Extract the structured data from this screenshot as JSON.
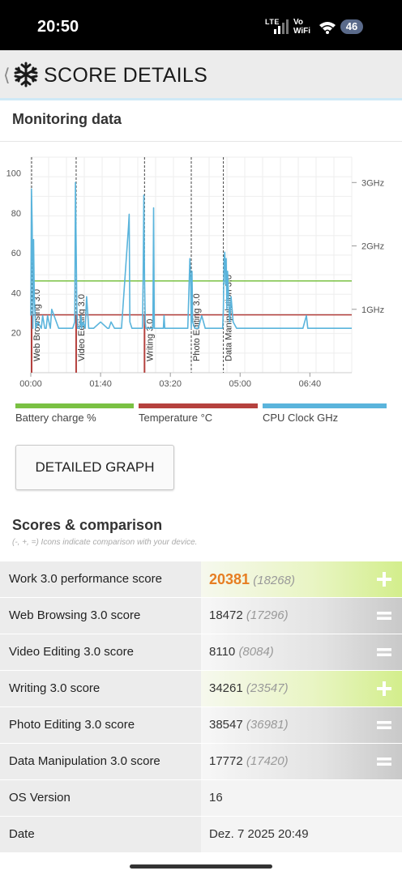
{
  "status_bar": {
    "time": "20:50",
    "network": "LTE",
    "vowifi": [
      "Vo",
      "WiFi"
    ],
    "battery": "46"
  },
  "app_bar": {
    "title": "SCORE DETAILS",
    "back_icon": "chevron-left-icon",
    "logo_icon": "snowflake-icon"
  },
  "monitoring": {
    "title": "Monitoring data"
  },
  "chart_data": {
    "type": "line",
    "title": "",
    "x_unit": "time (mm:ss)",
    "x_ticks": [
      "00:00",
      "01:40",
      "03:20",
      "05:00",
      "06:40"
    ],
    "x_range_seconds": [
      0,
      460
    ],
    "y_left": {
      "ticks": [
        20,
        40,
        60,
        80,
        100
      ],
      "range": [
        0,
        108
      ]
    },
    "y_right": {
      "ticks": [
        "1GHz",
        "2GHz",
        "3GHz"
      ],
      "range_ghz": [
        0,
        3.4
      ]
    },
    "grid": true,
    "colors": {
      "battery": "#7ac143",
      "temperature": "#b5413e",
      "cpu": "#5ab4dc"
    },
    "segments": [
      {
        "label": "Web Browsing 3.0",
        "start_s": 0
      },
      {
        "label": "Video Editing 3.0",
        "start_s": 65
      },
      {
        "label": "Writing 3.0",
        "start_s": 163
      },
      {
        "label": "Photo Editing 3.0",
        "start_s": 230
      },
      {
        "label": "Data Manipulation 3.0",
        "start_s": 276
      }
    ],
    "series": [
      {
        "name": "Battery charge %",
        "axis": "left",
        "x": [
          0,
          460
        ],
        "y": [
          46,
          46
        ]
      },
      {
        "name": "Temperature °C",
        "axis": "left",
        "x": [
          0,
          460
        ],
        "y": [
          29,
          29
        ]
      },
      {
        "name": "CPU Clock GHz",
        "axis": "right",
        "x": [
          0,
          1,
          2,
          3,
          4,
          5,
          7,
          10,
          15,
          17,
          20,
          22,
          24,
          26,
          28,
          30,
          40,
          60,
          63,
          64,
          65,
          66,
          67,
          70,
          72,
          73,
          75,
          78,
          80,
          83,
          85,
          90,
          100,
          110,
          112,
          115,
          120,
          130,
          140,
          141,
          142,
          145,
          150,
          160,
          161,
          162,
          163,
          164,
          165,
          166,
          170,
          175,
          176,
          177,
          180,
          190,
          191,
          192,
          195,
          210,
          220,
          225,
          228,
          229,
          230,
          231,
          232,
          235,
          240,
          245,
          250,
          260,
          275,
          276,
          277,
          278,
          279,
          280,
          281,
          282,
          285,
          287,
          290,
          295,
          300,
          320,
          350,
          390,
          395,
          397,
          400,
          420,
          440,
          460
        ],
        "y": [
          0.9,
          2.9,
          2.3,
          0.7,
          2.1,
          1.2,
          0.7,
          0.8,
          0.7,
          0.9,
          0.7,
          0.7,
          0.9,
          0.8,
          0.7,
          1.0,
          0.7,
          0.7,
          0.8,
          3.0,
          2.0,
          1.0,
          0.7,
          0.7,
          0.9,
          0.7,
          0.8,
          0.7,
          1.2,
          0.7,
          0.7,
          0.7,
          0.8,
          0.7,
          0.7,
          0.8,
          0.7,
          0.7,
          2.3,
          2.5,
          0.8,
          0.7,
          0.7,
          0.7,
          1.5,
          2.8,
          1.5,
          0.8,
          0.7,
          0.7,
          0.7,
          0.7,
          2.6,
          0.7,
          0.7,
          0.7,
          0.9,
          0.7,
          0.7,
          0.7,
          0.7,
          0.7,
          1.8,
          1.5,
          0.7,
          1.6,
          0.8,
          0.7,
          0.7,
          0.9,
          0.7,
          0.7,
          0.7,
          1.0,
          1.8,
          1.9,
          1.4,
          1.8,
          1.0,
          1.6,
          0.8,
          1.2,
          0.8,
          0.7,
          0.7,
          0.7,
          0.7,
          0.7,
          0.9,
          0.7,
          0.7,
          0.7,
          0.7,
          0.7
        ]
      }
    ]
  },
  "legend": [
    "Battery charge %",
    "Temperature °C",
    "CPU Clock GHz"
  ],
  "detailed_graph_button": "DETAILED GRAPH",
  "scores": {
    "title": "Scores & comparison",
    "subtitle": "(-, +, =) Icons indicate comparison with your device.",
    "rows": [
      {
        "label": "Work 3.0 performance score",
        "value": "20381",
        "ref": "(18268)",
        "cmp": "plus",
        "cmp_icon": "plus-icon"
      },
      {
        "label": "Web Browsing 3.0 score",
        "value": "18472",
        "ref": "(17296)",
        "cmp": "equal",
        "cmp_icon": "equal-icon"
      },
      {
        "label": "Video Editing 3.0 score",
        "value": "8110",
        "ref": "(8084)",
        "cmp": "equal",
        "cmp_icon": "equal-icon"
      },
      {
        "label": "Writing 3.0 score",
        "value": "34261",
        "ref": "(23547)",
        "cmp": "plus",
        "cmp_icon": "plus-icon"
      },
      {
        "label": "Photo Editing 3.0 score",
        "value": "38547",
        "ref": "(36981)",
        "cmp": "equal",
        "cmp_icon": "equal-icon"
      },
      {
        "label": "Data Manipulation 3.0 score",
        "value": "17772",
        "ref": "(17420)",
        "cmp": "equal",
        "cmp_icon": "equal-icon"
      },
      {
        "label": "OS Version",
        "value": "16",
        "ref": "",
        "cmp": "none"
      },
      {
        "label": "Date",
        "value": "Dez. 7 2025 20:49",
        "ref": "",
        "cmp": "none"
      }
    ]
  }
}
